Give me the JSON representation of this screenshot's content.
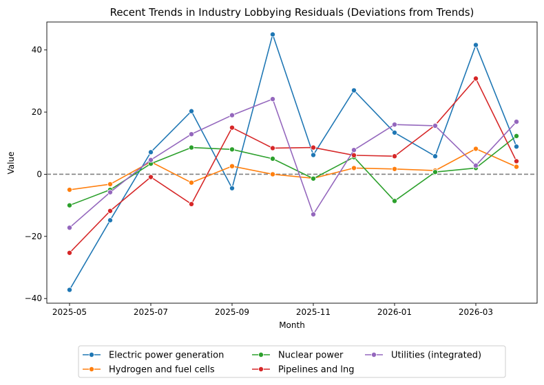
{
  "chart_data": {
    "type": "line",
    "title": "Recent Trends in Industry Lobbying Residuals (Deviations from Trends)",
    "xlabel": "Month",
    "ylabel": "Value",
    "x": [
      "2025-05",
      "2025-06",
      "2025-07",
      "2025-08",
      "2025-09",
      "2025-10",
      "2025-11",
      "2025-12",
      "2026-01",
      "2026-02",
      "2026-03",
      "2026-04"
    ],
    "xticks": [
      "2025-05",
      "2025-07",
      "2025-09",
      "2025-11",
      "2026-01",
      "2026-03"
    ],
    "yticks": [
      -40,
      -20,
      0,
      20,
      40
    ],
    "ylim": [
      -41.5,
      49
    ],
    "reference_line": {
      "y": 0,
      "style": "dashed",
      "color": "#808080"
    },
    "grid": false,
    "legend_position": "bottom-center",
    "series": [
      {
        "name": "Electric power generation",
        "color": "#1f77b4",
        "values": [
          -37.2,
          -14.8,
          7.1,
          20.3,
          -4.5,
          45.0,
          6.2,
          27.0,
          13.4,
          5.8,
          41.6,
          8.9
        ]
      },
      {
        "name": "Hydrogen and fuel cells",
        "color": "#ff7f0e",
        "values": [
          -5.0,
          -3.2,
          4.0,
          -2.7,
          2.6,
          0.0,
          -1.3,
          2.0,
          1.7,
          1.2,
          8.2,
          2.4
        ]
      },
      {
        "name": "Nuclear power",
        "color": "#2ca02c",
        "values": [
          -10.0,
          -5.0,
          3.4,
          8.6,
          8.0,
          5.0,
          -1.4,
          5.5,
          -8.6,
          0.7,
          2.0,
          12.3
        ]
      },
      {
        "name": "Pipelines and lng",
        "color": "#d62728",
        "values": [
          -25.3,
          -11.8,
          -0.9,
          -9.6,
          15.0,
          8.4,
          8.6,
          6.1,
          5.8,
          15.8,
          30.8,
          4.2
        ]
      },
      {
        "name": "Utilities (integrated)",
        "color": "#9467bd",
        "values": [
          -17.2,
          -5.8,
          4.6,
          12.9,
          19.0,
          24.2,
          -12.9,
          7.8,
          16.0,
          15.6,
          2.8,
          16.9
        ]
      }
    ]
  }
}
